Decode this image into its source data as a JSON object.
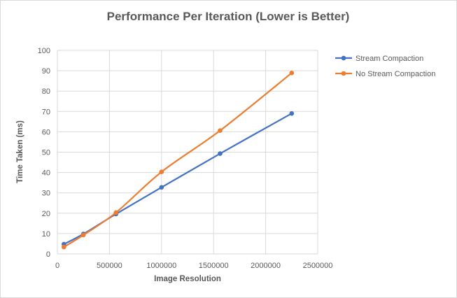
{
  "chart_data": {
    "type": "line",
    "title": "Performance Per Iteration (Lower is Better)",
    "xlabel": "Image Resolution",
    "ylabel": "Time Taken  (ms)",
    "xlim": [
      0,
      2500000
    ],
    "ylim": [
      0,
      100
    ],
    "x_ticks": [
      0,
      500000,
      1000000,
      1500000,
      2000000,
      2500000
    ],
    "y_ticks": [
      0,
      10,
      20,
      30,
      40,
      50,
      60,
      70,
      80,
      90,
      100
    ],
    "grid": true,
    "legend_position": "right",
    "series": [
      {
        "name": "Stream Compaction",
        "color": "#4472c4",
        "points": [
          [
            62500,
            4.8
          ],
          [
            250000,
            9.8
          ],
          [
            562500,
            19.6
          ],
          [
            1000000,
            32.7
          ],
          [
            1562500,
            49.3
          ],
          [
            2250000,
            69.0
          ]
        ]
      },
      {
        "name": "No Stream Compaction",
        "color": "#ed7d31",
        "points": [
          [
            62500,
            3.4
          ],
          [
            250000,
            9.3
          ],
          [
            562500,
            20.3
          ],
          [
            1000000,
            40.3
          ],
          [
            1562500,
            60.6
          ],
          [
            2250000,
            88.9
          ]
        ]
      }
    ]
  }
}
